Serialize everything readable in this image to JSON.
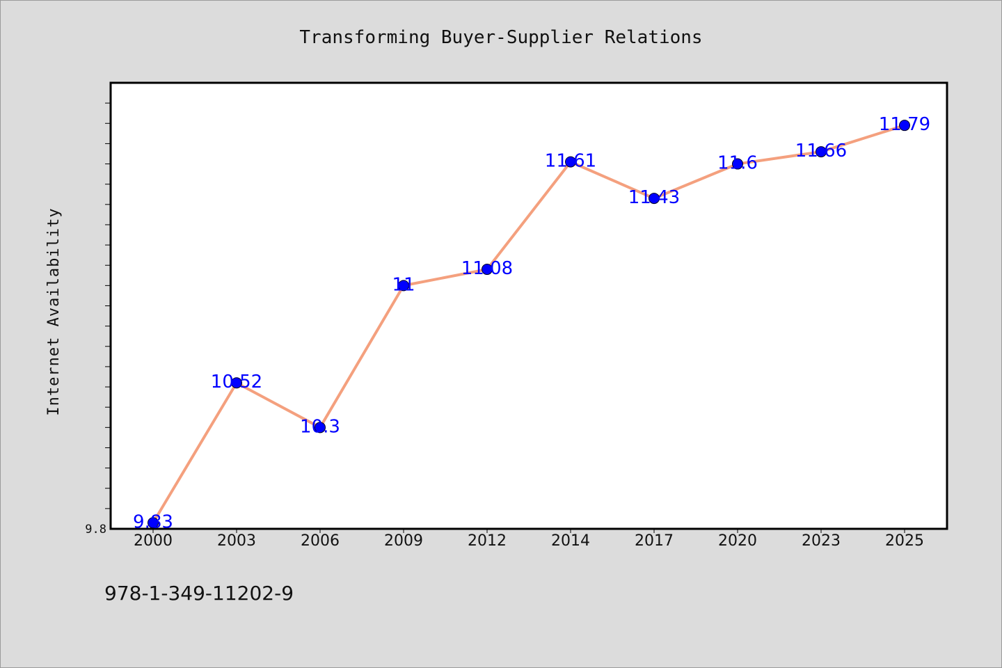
{
  "chart_data": {
    "type": "line",
    "title": "Transforming Buyer-Supplier Relations",
    "xlabel": "",
    "ylabel": "Internet Availability",
    "categories": [
      "2000",
      "2003",
      "2006",
      "2009",
      "2012",
      "2014",
      "2017",
      "2020",
      "2023",
      "2025"
    ],
    "series": [
      {
        "values": [
          9.83,
          10.52,
          10.3,
          11.0,
          11.08,
          11.61,
          11.43,
          11.6,
          11.66,
          11.79
        ],
        "labels": [
          "9.83",
          "10.52",
          "10.3",
          "11",
          "11.08",
          "11.61",
          "11.43",
          "11.6",
          "11.66",
          "11.79"
        ],
        "line_color": "#f4a07e",
        "marker_color": "#0000ff"
      }
    ],
    "ylim": [
      9.8,
      12.0
    ],
    "yticks_labeled": [
      "9.8"
    ],
    "grid": false,
    "legend": "none"
  },
  "footer": {
    "isbn": "978-1-349-11202-9"
  },
  "colors": {
    "figure_background": "#dcdcdc",
    "plot_background": "#ffffff",
    "line": "#f4a07e",
    "marker": "#0000ff",
    "data_label": "#0000ff"
  }
}
